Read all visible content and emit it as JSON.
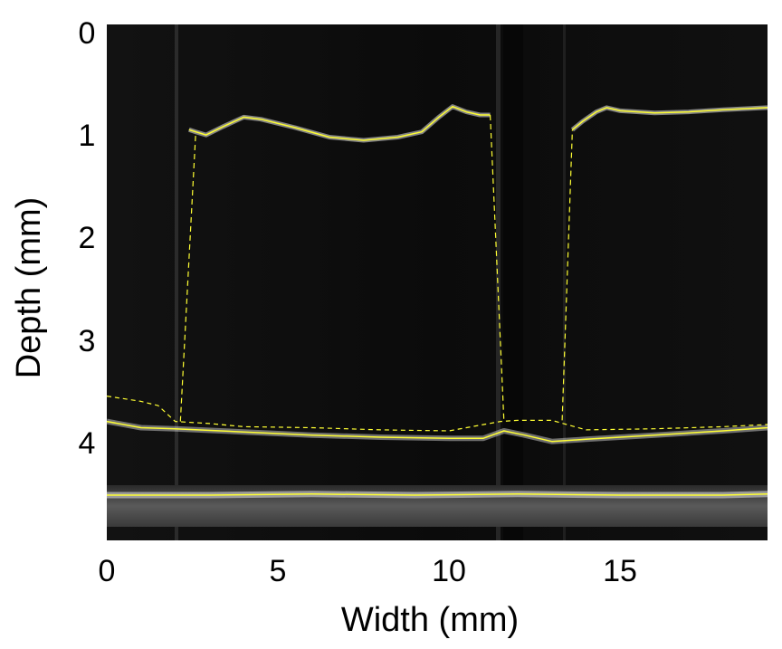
{
  "figure": {
    "xlabel": "Width (mm)",
    "ylabel": "Depth (mm)",
    "x_ticks": [
      "0",
      "5",
      "10",
      "15"
    ],
    "y_ticks": [
      "0",
      "1",
      "2",
      "3",
      "4"
    ],
    "xlim": [
      0,
      19.3
    ],
    "ylim": [
      0,
      4.9
    ],
    "colors": {
      "background": "#000000",
      "segmentation": "#ffff33",
      "tissue": "#e6e6e6"
    },
    "traces": {
      "upper_surface": {
        "x": [
          2.4,
          2.6,
          2.9,
          3.4,
          4.0,
          4.5,
          5.5,
          6.5,
          7.5,
          8.5,
          9.2,
          9.7,
          10.1,
          10.5,
          10.9,
          11.2
        ],
        "y": [
          1.0,
          1.02,
          1.05,
          0.97,
          0.88,
          0.9,
          0.98,
          1.07,
          1.1,
          1.07,
          1.02,
          0.88,
          0.78,
          0.83,
          0.86,
          0.86
        ]
      },
      "upper_surface_right": {
        "x": [
          13.6,
          13.9,
          14.3,
          14.6,
          15.0,
          16.0,
          17.0,
          18.0,
          19.3
        ],
        "y": [
          1.0,
          0.92,
          0.83,
          0.79,
          0.82,
          0.84,
          0.83,
          0.81,
          0.79
        ]
      },
      "middle_boundary": {
        "x": [
          0,
          1.0,
          1.5,
          2.0,
          3.0,
          4.0,
          6.0,
          8.0,
          10.0,
          11.5,
          12.0,
          13.0,
          14.0,
          16.0,
          18.0,
          19.3
        ],
        "y": [
          3.53,
          3.58,
          3.62,
          3.77,
          3.79,
          3.82,
          3.83,
          3.85,
          3.86,
          3.77,
          3.76,
          3.76,
          3.85,
          3.84,
          3.82,
          3.8
        ]
      },
      "lower_boundary": {
        "x": [
          0,
          1.0,
          2.0,
          4.0,
          6.0,
          8.0,
          10.0,
          11.0,
          11.6,
          12.2,
          13.0,
          14.0,
          16.0,
          18.0,
          19.3
        ],
        "y": [
          3.77,
          3.83,
          3.84,
          3.87,
          3.9,
          3.92,
          3.93,
          3.93,
          3.86,
          3.9,
          3.96,
          3.94,
          3.9,
          3.86,
          3.83
        ]
      },
      "connector_left": {
        "x": [
          2.15,
          2.6
        ],
        "y": [
          3.77,
          1.02
        ]
      },
      "connector_mid": {
        "x": [
          11.2,
          11.6
        ],
        "y": [
          0.86,
          3.77
        ]
      },
      "connector_right": {
        "x": [
          13.3,
          13.6
        ],
        "y": [
          3.76,
          1.0
        ]
      },
      "bottom_layer": {
        "x": [
          0,
          3.0,
          6.0,
          9.0,
          12.0,
          15.0,
          18.0,
          19.3
        ],
        "y": [
          4.47,
          4.47,
          4.46,
          4.47,
          4.46,
          4.47,
          4.47,
          4.46
        ]
      }
    }
  }
}
